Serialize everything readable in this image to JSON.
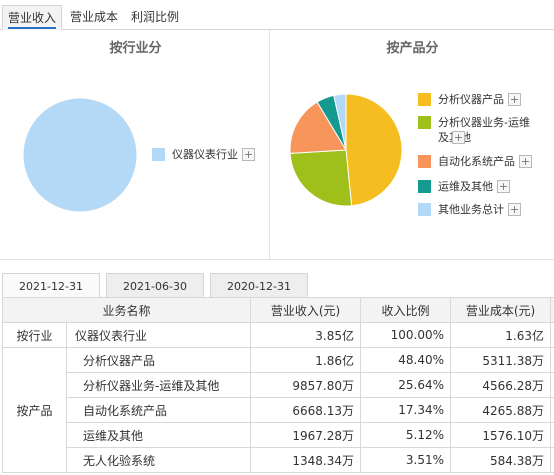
{
  "tabs": [
    {
      "label": "营业收入",
      "active": true
    },
    {
      "label": "营业成本",
      "active": false
    },
    {
      "label": "利润比例",
      "active": false
    }
  ],
  "industry_panel": {
    "title": "按行业分",
    "legend": [
      {
        "label": "仪器仪表行业",
        "color": "#b3d9f7"
      }
    ]
  },
  "product_panel": {
    "title": "按产品分",
    "legend": [
      {
        "label": "分析仪器产品",
        "color": "#f5bd1f"
      },
      {
        "label": "分析仪器业务-运维及其他",
        "color": "#9fbf1a"
      },
      {
        "label": "自动化系统产品",
        "color": "#f7955a"
      },
      {
        "label": "运维及其他",
        "color": "#159a8f"
      },
      {
        "label": "其他业务总计",
        "color": "#b3d9f7"
      }
    ]
  },
  "chart_data": [
    {
      "type": "pie",
      "title": "按行业分",
      "categories": [
        "仪器仪表行业"
      ],
      "values": [
        100.0
      ],
      "colors": [
        "#b3d9f7"
      ]
    },
    {
      "type": "pie",
      "title": "按产品分",
      "categories": [
        "分析仪器产品",
        "分析仪器业务-运维及其他",
        "自动化系统产品",
        "运维及其他",
        "其他业务总计"
      ],
      "values": [
        48.4,
        25.64,
        17.34,
        5.12,
        3.5
      ],
      "colors": [
        "#f5bd1f",
        "#9fbf1a",
        "#f7955a",
        "#159a8f",
        "#b3d9f7"
      ]
    }
  ],
  "plus_symbol": "+",
  "date_tabs": [
    {
      "label": "2021-12-31",
      "active": true
    },
    {
      "label": "2021-06-30",
      "active": false
    },
    {
      "label": "2020-12-31",
      "active": false
    }
  ],
  "table": {
    "headers": [
      "业务名称",
      "营业收入(元)",
      "收入比例",
      "营业成本(元)"
    ],
    "groups": [
      {
        "label": "按行业",
        "rows": [
          {
            "name": "仪器仪表行业",
            "revenue": "3.85亿",
            "ratio": "100.00%",
            "cost": "1.63亿"
          }
        ]
      },
      {
        "label": "按产品",
        "rows": [
          {
            "name": "分析仪器产品",
            "revenue": "1.86亿",
            "ratio": "48.40%",
            "cost": "5311.38万"
          },
          {
            "name": "分析仪器业务-运维及其他",
            "revenue": "9857.80万",
            "ratio": "25.64%",
            "cost": "4566.28万"
          },
          {
            "name": "自动化系统产品",
            "revenue": "6668.13万",
            "ratio": "17.34%",
            "cost": "4265.88万"
          },
          {
            "name": "运维及其他",
            "revenue": "1967.28万",
            "ratio": "5.12%",
            "cost": "1576.10万"
          },
          {
            "name": "无人化验系统",
            "revenue": "1348.34万",
            "ratio": "3.51%",
            "cost": "584.38万"
          }
        ]
      }
    ]
  }
}
